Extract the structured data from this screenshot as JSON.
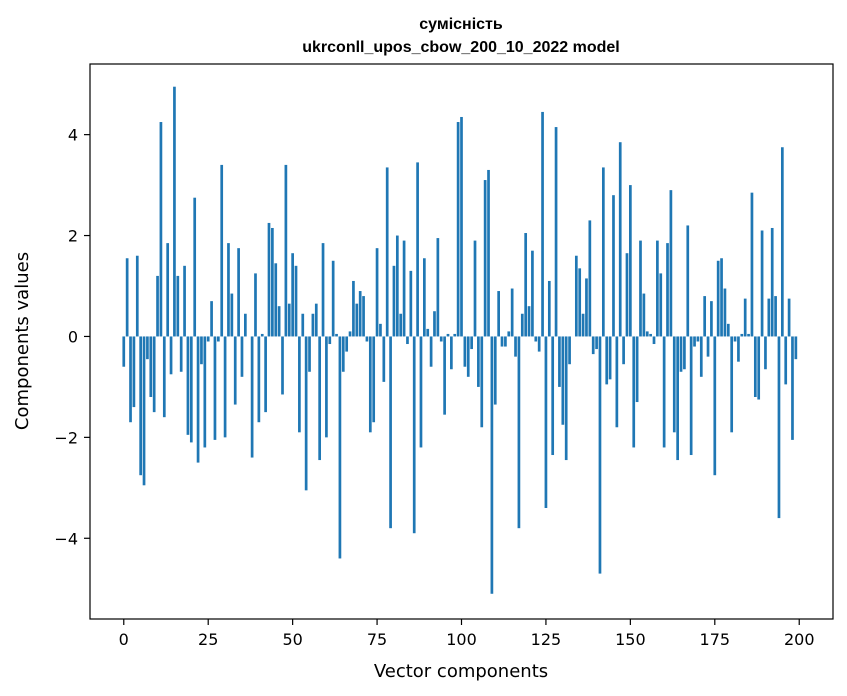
{
  "chart_data": {
    "type": "bar",
    "title": "сумісність",
    "subtitle": "ukrconll_upos_cbow_200_10_2022 model",
    "xlabel": "Vector components",
    "ylabel": "Components values",
    "xlim": [
      -10,
      210
    ],
    "ylim": [
      -5.6,
      5.4
    ],
    "xticks": [
      0,
      25,
      50,
      75,
      100,
      125,
      150,
      175,
      200
    ],
    "xtick_labels": [
      "0",
      "25",
      "50",
      "75",
      "100",
      "125",
      "150",
      "175",
      "200"
    ],
    "yticks": [
      -4,
      -2,
      0,
      2,
      4
    ],
    "ytick_labels": [
      "−4",
      "−2",
      "0",
      "2",
      "4"
    ],
    "grid": false,
    "bar_color": "#1f77b4",
    "x": [
      0,
      1,
      2,
      3,
      4,
      5,
      6,
      7,
      8,
      9,
      10,
      11,
      12,
      13,
      14,
      15,
      16,
      17,
      18,
      19,
      20,
      21,
      22,
      23,
      24,
      25,
      26,
      27,
      28,
      29,
      30,
      31,
      32,
      33,
      34,
      35,
      36,
      37,
      38,
      39,
      40,
      41,
      42,
      43,
      44,
      45,
      46,
      47,
      48,
      49,
      50,
      51,
      52,
      53,
      54,
      55,
      56,
      57,
      58,
      59,
      60,
      61,
      62,
      63,
      64,
      65,
      66,
      67,
      68,
      69,
      70,
      71,
      72,
      73,
      74,
      75,
      76,
      77,
      78,
      79,
      80,
      81,
      82,
      83,
      84,
      85,
      86,
      87,
      88,
      89,
      90,
      91,
      92,
      93,
      94,
      95,
      96,
      97,
      98,
      99,
      100,
      101,
      102,
      103,
      104,
      105,
      106,
      107,
      108,
      109,
      110,
      111,
      112,
      113,
      114,
      115,
      116,
      117,
      118,
      119,
      120,
      121,
      122,
      123,
      124,
      125,
      126,
      127,
      128,
      129,
      130,
      131,
      132,
      133,
      134,
      135,
      136,
      137,
      138,
      139,
      140,
      141,
      142,
      143,
      144,
      145,
      146,
      147,
      148,
      149,
      150,
      151,
      152,
      153,
      154,
      155,
      156,
      157,
      158,
      159,
      160,
      161,
      162,
      163,
      164,
      165,
      166,
      167,
      168,
      169,
      170,
      171,
      172,
      173,
      174,
      175,
      176,
      177,
      178,
      179,
      180,
      181,
      182,
      183,
      184,
      185,
      186,
      187,
      188,
      189,
      190,
      191,
      192,
      193,
      194,
      195,
      196,
      197,
      198,
      199
    ],
    "values": [
      -0.6,
      1.55,
      -1.7,
      -1.4,
      1.6,
      -2.75,
      -2.95,
      -0.45,
      -1.2,
      -1.5,
      1.2,
      4.25,
      -1.6,
      1.85,
      -0.75,
      4.95,
      1.2,
      -0.7,
      1.4,
      -1.95,
      -2.1,
      2.75,
      -2.5,
      -0.55,
      -2.2,
      -0.1,
      0.7,
      -2.05,
      -0.1,
      3.4,
      -2.0,
      1.85,
      0.85,
      -1.35,
      1.75,
      -0.8,
      0.45,
      0.0,
      -2.4,
      1.25,
      -1.7,
      0.05,
      -1.5,
      2.25,
      2.15,
      1.45,
      0.6,
      -1.15,
      3.4,
      0.65,
      1.65,
      1.4,
      -1.9,
      0.45,
      -3.05,
      -0.7,
      0.45,
      0.65,
      -2.45,
      1.85,
      -2.0,
      -0.15,
      1.5,
      0.05,
      -4.4,
      -0.7,
      -0.3,
      0.1,
      1.1,
      0.65,
      0.9,
      0.8,
      -0.1,
      -1.9,
      -1.7,
      1.75,
      0.25,
      -0.9,
      3.35,
      -3.8,
      1.4,
      2.0,
      0.45,
      1.9,
      -0.15,
      1.3,
      -3.9,
      3.45,
      -2.2,
      1.55,
      0.15,
      -0.6,
      0.5,
      1.95,
      -0.1,
      -1.55,
      0.05,
      -0.65,
      0.05,
      4.25,
      4.35,
      -0.6,
      -0.8,
      -0.25,
      1.9,
      -1.0,
      -1.8,
      3.1,
      3.3,
      -5.1,
      -1.35,
      0.9,
      -0.2,
      -0.2,
      0.1,
      0.95,
      -0.4,
      -3.8,
      0.45,
      2.05,
      0.6,
      1.7,
      -0.1,
      -0.3,
      4.45,
      -3.4,
      1.1,
      -2.35,
      4.15,
      -1.0,
      -1.75,
      -2.45,
      -0.55,
      0.0,
      1.6,
      1.35,
      0.45,
      1.15,
      2.3,
      -0.35,
      -0.25,
      -4.7,
      3.35,
      -0.95,
      -0.85,
      2.8,
      -1.8,
      3.85,
      -0.55,
      1.65,
      3.0,
      -2.2,
      -1.3,
      1.9,
      0.85,
      0.1,
      0.05,
      -0.15,
      1.9,
      1.25,
      -2.2,
      1.85,
      2.9,
      -1.9,
      -2.45,
      -0.7,
      -0.65,
      2.2,
      -2.35,
      -0.2,
      -0.1,
      -0.8,
      0.8,
      -0.4,
      0.7,
      -2.75,
      1.5,
      1.55,
      0.95,
      0.25,
      -1.9,
      -0.1,
      -0.5,
      0.05,
      0.75,
      0.05,
      2.85,
      -1.2,
      -1.25,
      2.1,
      -0.65,
      0.75,
      2.15,
      0.8,
      -3.6,
      3.75,
      -0.95,
      0.75,
      -2.05,
      -0.45
    ]
  }
}
